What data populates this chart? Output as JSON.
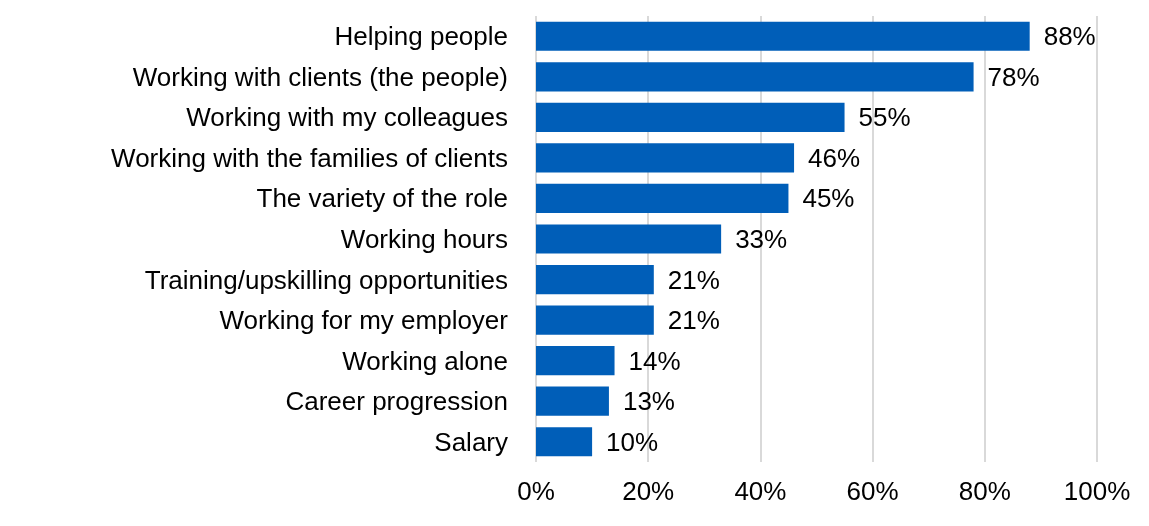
{
  "chart_data": {
    "type": "bar",
    "orientation": "horizontal",
    "categories": [
      "Helping people",
      "Working with clients (the people)",
      "Working with my colleagues",
      "Working with the families of clients",
      "The variety of the role",
      "Working hours",
      "Training/upskilling opportunities",
      "Working for my employer",
      "Working alone",
      "Career progression",
      "Salary"
    ],
    "values": [
      88,
      78,
      55,
      46,
      45,
      33,
      21,
      21,
      14,
      13,
      10
    ],
    "value_labels": [
      "88%",
      "78%",
      "55%",
      "46%",
      "45%",
      "33%",
      "21%",
      "21%",
      "14%",
      "13%",
      "10%"
    ],
    "color": "#005eb8",
    "xlim": [
      0,
      100
    ],
    "xticks": [
      {
        "value": 0,
        "label": "0%"
      },
      {
        "value": 20,
        "label": "20%"
      },
      {
        "value": 40,
        "label": "40%"
      },
      {
        "value": 60,
        "label": "60%"
      },
      {
        "value": 80,
        "label": "80%"
      },
      {
        "value": 100,
        "label": "100%"
      }
    ],
    "grid": "x"
  }
}
